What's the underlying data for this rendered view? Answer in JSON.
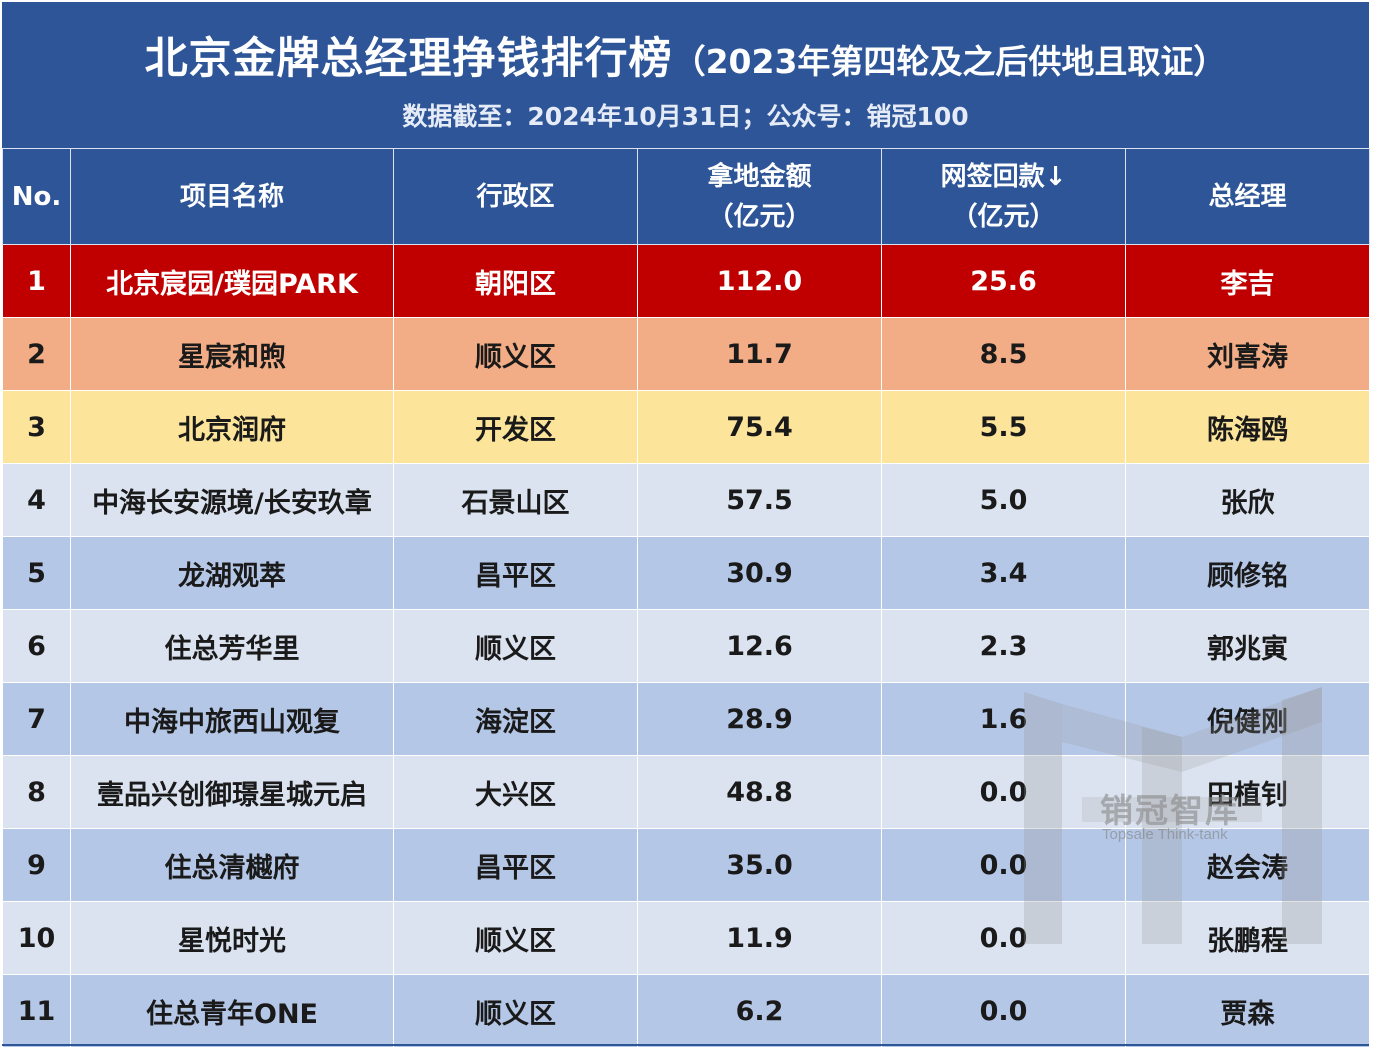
{
  "header": {
    "title": "北京金牌总经理挣钱排行榜",
    "title_suffix": "（2023年第四轮及之后供地且取证）",
    "subtitle": "数据截至：2024年10月31日；公众号：销冠100"
  },
  "columns": {
    "no": "No.",
    "project": "项目名称",
    "district": "行政区",
    "land_amount_line1": "拿地金额",
    "land_amount_line2": "（亿元）",
    "payback_line1": "网签回款↓",
    "payback_line2": "（亿元）",
    "manager": "总经理"
  },
  "rows": [
    {
      "no": "1",
      "project": "北京宸园/璞园PARK",
      "district": "朝阳区",
      "land": "112.0",
      "payback": "25.6",
      "manager": "李吉"
    },
    {
      "no": "2",
      "project": "星宸和煦",
      "district": "顺义区",
      "land": "11.7",
      "payback": "8.5",
      "manager": "刘喜涛"
    },
    {
      "no": "3",
      "project": "北京润府",
      "district": "开发区",
      "land": "75.4",
      "payback": "5.5",
      "manager": "陈海鸥"
    },
    {
      "no": "4",
      "project": "中海长安源境/长安玖章",
      "district": "石景山区",
      "land": "57.5",
      "payback": "5.0",
      "manager": "张欣"
    },
    {
      "no": "5",
      "project": "龙湖观萃",
      "district": "昌平区",
      "land": "30.9",
      "payback": "3.4",
      "manager": "顾修铭"
    },
    {
      "no": "6",
      "project": "住总芳华里",
      "district": "顺义区",
      "land": "12.6",
      "payback": "2.3",
      "manager": "郭兆寅"
    },
    {
      "no": "7",
      "project": "中海中旅西山观复",
      "district": "海淀区",
      "land": "28.9",
      "payback": "1.6",
      "manager": "倪健刚"
    },
    {
      "no": "8",
      "project": "壹品兴创御璟星城元启",
      "district": "大兴区",
      "land": "48.8",
      "payback": "0.0",
      "manager": "田植钊"
    },
    {
      "no": "9",
      "project": "住总清樾府",
      "district": "昌平区",
      "land": "35.0",
      "payback": "0.0",
      "manager": "赵会涛"
    },
    {
      "no": "10",
      "project": "星悦时光",
      "district": "顺义区",
      "land": "11.9",
      "payback": "0.0",
      "manager": "张鹏程"
    },
    {
      "no": "11",
      "project": "住总青年ONE",
      "district": "顺义区",
      "land": "6.2",
      "payback": "0.0",
      "manager": "贾森"
    }
  ],
  "watermark": {
    "name": "销冠智库",
    "english": "Topsale Think-tank"
  },
  "colors": {
    "header_blue": "#2d5597",
    "rank1_red": "#c00000",
    "rank2_orange": "#f3ad86",
    "rank3_yellow": "#fce59a",
    "row_light": "#dbe3f0",
    "row_blue": "#b5c7e7"
  }
}
